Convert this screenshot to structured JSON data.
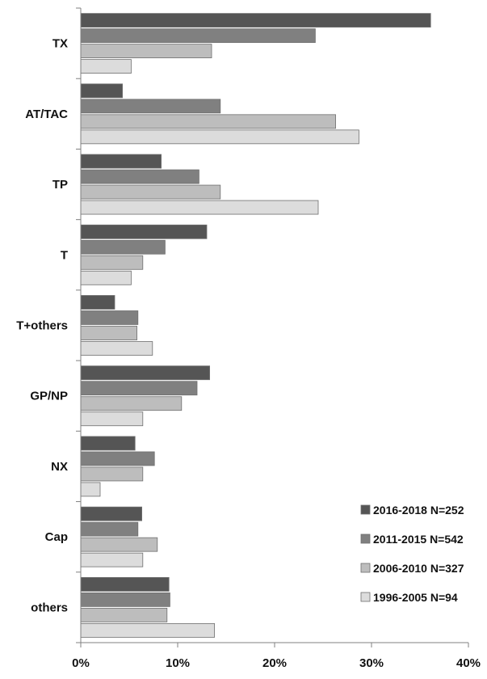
{
  "chart_data": {
    "type": "bar",
    "orientation": "horizontal",
    "categories": [
      "TX",
      "AT/TAC",
      "TP",
      "T",
      "T+others",
      "GP/NP",
      "NX",
      "Cap",
      "others"
    ],
    "series": [
      {
        "name": "2016-2018  N=252",
        "color": "#555555",
        "values": [
          36.1,
          4.3,
          8.3,
          13.0,
          3.5,
          13.3,
          5.6,
          6.3,
          9.1
        ]
      },
      {
        "name": "2011-2015  N=542",
        "color": "#808080",
        "values": [
          24.2,
          14.4,
          12.2,
          8.7,
          5.9,
          12.0,
          7.6,
          5.9,
          9.2
        ]
      },
      {
        "name": "2006-2010  N=327",
        "color": "#bdbdbd",
        "values": [
          13.5,
          26.3,
          14.4,
          6.4,
          5.8,
          10.4,
          6.4,
          7.9,
          8.9
        ]
      },
      {
        "name": "1996-2005  N=94",
        "color": "#dcdcdc",
        "values": [
          5.2,
          28.7,
          24.5,
          5.2,
          7.4,
          6.4,
          2.0,
          6.4,
          13.8
        ]
      }
    ],
    "xlim": [
      0,
      40
    ],
    "xticks": [
      "0%",
      "10%",
      "20%",
      "30%",
      "40%"
    ],
    "grid": false,
    "legend_position": "bottom-right"
  }
}
